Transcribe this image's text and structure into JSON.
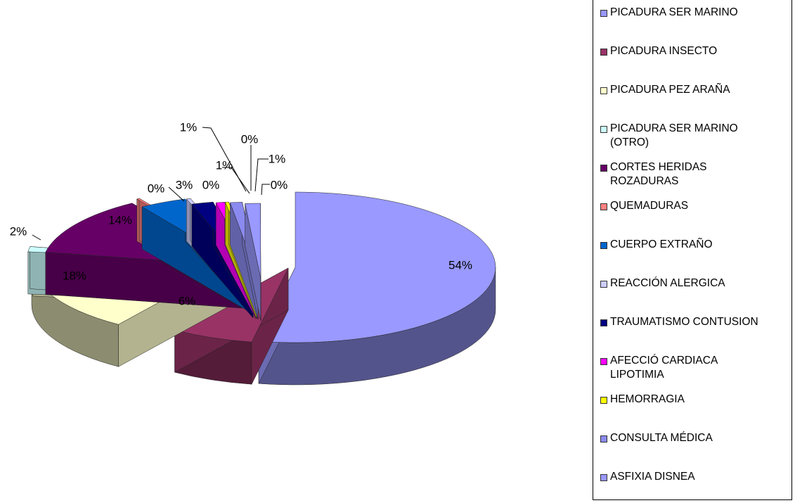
{
  "chart_data": {
    "type": "pie",
    "style": "exploded 3d pie",
    "categories": [
      "PICADURA SER MARINO",
      "PICADURA INSECTO",
      "PICADURA PEZ ARAÑA",
      "PICADURA SER MARINO\n(OTRO)",
      "CORTES HERIDAS\nROZADURAS",
      "QUEMADURAS",
      "CUERPO EXTRAÑO",
      "REACCIÓN ALERGICA",
      "TRAUMATISMO CONTUSION",
      "AFECCIÓ CARDIACA\nLIPOTIMIA",
      "HEMORRAGIA",
      "CONSULTA MÉDICA",
      "ASFIXIA DISNEA"
    ],
    "values": [
      54,
      6,
      18,
      2,
      14,
      0,
      3,
      0,
      1,
      1,
      0,
      1,
      0
    ],
    "data_labels": [
      "54%",
      "6%",
      "18%",
      "2%",
      "14%",
      "0%",
      "3%",
      "0%",
      "1%",
      "1%",
      "0%",
      "1%",
      "0%"
    ],
    "colors": [
      "#9999ff",
      "#993366",
      "#ffffcc",
      "#ccffff",
      "#660066",
      "#ff8080",
      "#0066cc",
      "#ccccff",
      "#000080",
      "#ff00ff",
      "#ffff00",
      "#8a8af0",
      "#9999ff"
    ],
    "legend_position": "right"
  }
}
